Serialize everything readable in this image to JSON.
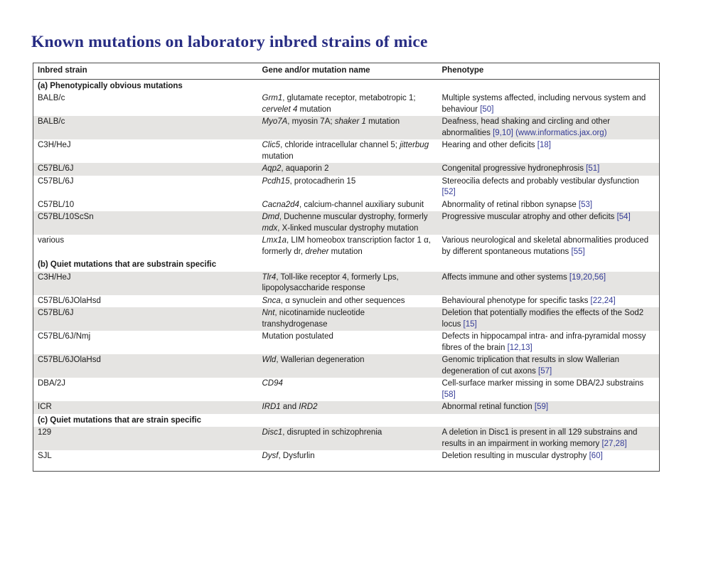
{
  "title": "Known mutations on laboratory inbred strains of mice",
  "colors": {
    "accent": "#272c83",
    "ref": "#343b96",
    "row_shade": "#e5e4e2"
  },
  "table": {
    "headers": [
      "Inbred strain",
      "Gene and/or mutation name",
      "Phenotype"
    ],
    "rows": [
      {
        "type": "section",
        "label": "(a) Phenotypically obvious mutations"
      },
      {
        "type": "data",
        "shaded": false,
        "strain": "BALB/c",
        "gene": [
          {
            "t": "Grm1",
            "i": true
          },
          {
            "t": ", glutamate receptor, metabotropic 1; "
          },
          {
            "t": "cervelet 4",
            "i": true
          },
          {
            "t": " mutation"
          }
        ],
        "phenotype": [
          {
            "t": "Multiple systems affected, including nervous system and behaviour "
          },
          {
            "t": "[50]",
            "r": true
          }
        ]
      },
      {
        "type": "data",
        "shaded": true,
        "strain": "BALB/c",
        "gene": [
          {
            "t": "Myo7A",
            "i": true
          },
          {
            "t": ", myosin 7A; "
          },
          {
            "t": "shaker 1",
            "i": true
          },
          {
            "t": " mutation"
          }
        ],
        "phenotype": [
          {
            "t": "Deafness, head shaking and circling and other abnormalities "
          },
          {
            "t": "[9,10]",
            "r": true
          },
          {
            "t": " "
          },
          {
            "t": "(www.informatics.jax.org)",
            "r": true
          }
        ]
      },
      {
        "type": "data",
        "shaded": false,
        "strain": "C3H/HeJ",
        "gene": [
          {
            "t": "Clic5",
            "i": true
          },
          {
            "t": ", chloride intracellular channel 5; "
          },
          {
            "t": "jitterbug",
            "i": true
          },
          {
            "t": " mutation"
          }
        ],
        "phenotype": [
          {
            "t": "Hearing and other deficits "
          },
          {
            "t": "[18]",
            "r": true
          }
        ]
      },
      {
        "type": "data",
        "shaded": true,
        "strain": "C57BL/6J",
        "gene": [
          {
            "t": "Aqp2",
            "i": true
          },
          {
            "t": ", aquaporin 2"
          }
        ],
        "phenotype": [
          {
            "t": "Congenital progressive hydronephrosis "
          },
          {
            "t": "[51]",
            "r": true
          }
        ]
      },
      {
        "type": "data",
        "shaded": false,
        "strain": "C57BL/6J",
        "gene": [
          {
            "t": "Pcdh15",
            "i": true
          },
          {
            "t": ", protocadherin 15"
          }
        ],
        "phenotype": [
          {
            "t": "Stereocilia defects and probably vestibular dysfunction "
          },
          {
            "t": "[52]",
            "r": true
          }
        ]
      },
      {
        "type": "data",
        "shaded": false,
        "strain": "C57BL/10",
        "gene": [
          {
            "t": "Cacna2d4",
            "i": true
          },
          {
            "t": ", calcium-channel auxiliary subunit"
          }
        ],
        "phenotype": [
          {
            "t": "Abnormality of retinal ribbon synapse "
          },
          {
            "t": "[53]",
            "r": true
          }
        ]
      },
      {
        "type": "data",
        "shaded": true,
        "strain": "C57BL/10ScSn",
        "gene": [
          {
            "t": "Dmd",
            "i": true
          },
          {
            "t": ", Duchenne muscular dystrophy, formerly "
          },
          {
            "t": "mdx",
            "i": true
          },
          {
            "t": ", X-linked muscular dystrophy mutation"
          }
        ],
        "phenotype": [
          {
            "t": "Progressive muscular atrophy and other deficits "
          },
          {
            "t": "[54]",
            "r": true
          }
        ]
      },
      {
        "type": "data",
        "shaded": false,
        "strain": "various",
        "gene": [
          {
            "t": "Lmx1a",
            "i": true
          },
          {
            "t": ", LIM homeobox transcription factor 1 α, formerly dr, "
          },
          {
            "t": "dreher",
            "i": true
          },
          {
            "t": " mutation"
          }
        ],
        "phenotype": [
          {
            "t": "Various neurological and skeletal abnormalities produced by different spontaneous mutations "
          },
          {
            "t": "[55]",
            "r": true
          }
        ]
      },
      {
        "type": "section",
        "label": "(b) Quiet mutations that are substrain specific"
      },
      {
        "type": "data",
        "shaded": true,
        "strain": "C3H/HeJ",
        "gene": [
          {
            "t": "Tlr4",
            "i": true
          },
          {
            "t": ", Toll-like receptor 4, formerly Lps, lipopolysaccharide response"
          }
        ],
        "phenotype": [
          {
            "t": "Affects immune and other systems "
          },
          {
            "t": "[19,20,56]",
            "r": true
          }
        ]
      },
      {
        "type": "data",
        "shaded": false,
        "strain": "C57BL/6JOlaHsd",
        "gene": [
          {
            "t": "Snca",
            "i": true
          },
          {
            "t": ", α synuclein and other sequences"
          }
        ],
        "phenotype": [
          {
            "t": "Behavioural phenotype for specific tasks "
          },
          {
            "t": "[22,24]",
            "r": true
          }
        ]
      },
      {
        "type": "data",
        "shaded": true,
        "strain": "C57BL/6J",
        "gene": [
          {
            "t": "Nnt",
            "i": true
          },
          {
            "t": ", nicotinamide nucleotide transhydrogenase"
          }
        ],
        "phenotype": [
          {
            "t": "Deletion that potentially modifies the effects of the Sod2 locus "
          },
          {
            "t": "[15]",
            "r": true
          }
        ]
      },
      {
        "type": "data",
        "shaded": false,
        "strain": "C57BL/6J/Nmj",
        "gene": [
          {
            "t": "Mutation postulated"
          }
        ],
        "phenotype": [
          {
            "t": "Defects in hippocampal intra- and infra-pyramidal mossy fibres of the brain "
          },
          {
            "t": "[12,13]",
            "r": true
          }
        ]
      },
      {
        "type": "data",
        "shaded": true,
        "strain": "C57BL/6JOlaHsd",
        "gene": [
          {
            "t": "Wld",
            "i": true
          },
          {
            "t": ", Wallerian degeneration"
          }
        ],
        "phenotype": [
          {
            "t": "Genomic triplication that results in slow Wallerian degeneration of cut axons "
          },
          {
            "t": "[57]",
            "r": true
          }
        ]
      },
      {
        "type": "data",
        "shaded": false,
        "strain": "DBA/2J",
        "gene": [
          {
            "t": "CD94",
            "i": true
          }
        ],
        "phenotype": [
          {
            "t": "Cell-surface marker missing in some DBA/2J substrains "
          },
          {
            "t": "[58]",
            "r": true
          }
        ]
      },
      {
        "type": "data",
        "shaded": true,
        "strain": "ICR",
        "gene": [
          {
            "t": "IRD1",
            "i": true
          },
          {
            "t": " and "
          },
          {
            "t": "IRD2",
            "i": true
          }
        ],
        "phenotype": [
          {
            "t": "Abnormal retinal function "
          },
          {
            "t": "[59]",
            "r": true
          }
        ]
      },
      {
        "type": "section",
        "label": "(c) Quiet mutations that are strain specific"
      },
      {
        "type": "data",
        "shaded": true,
        "strain": "129",
        "gene": [
          {
            "t": "Disc1",
            "i": true
          },
          {
            "t": ", disrupted in schizophrenia"
          }
        ],
        "phenotype": [
          {
            "t": "A deletion in Disc1 is present in all 129 substrains and results in an impairment in working memory "
          },
          {
            "t": "[27,28]",
            "r": true
          }
        ]
      },
      {
        "type": "data",
        "shaded": false,
        "strain": "SJL",
        "gene": [
          {
            "t": "Dysf",
            "i": true
          },
          {
            "t": ", Dysfurlin"
          }
        ],
        "phenotype": [
          {
            "t": "Deletion resulting in muscular dystrophy "
          },
          {
            "t": "[60]",
            "r": true
          }
        ]
      }
    ]
  }
}
